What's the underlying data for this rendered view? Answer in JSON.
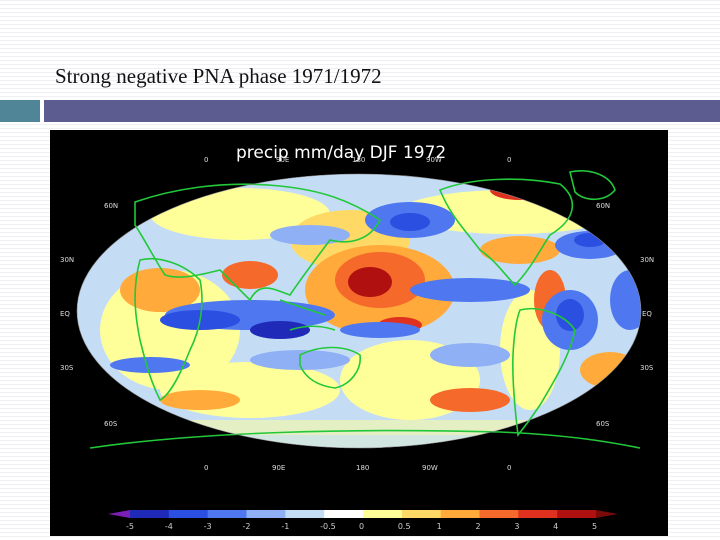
{
  "slide": {
    "title": "Strong negative PNA phase 1971/1972"
  },
  "map": {
    "title": "precip  mm/day DJF 1972",
    "projection": "global elliptical (Robinson-like)",
    "top_lon_labels": [
      "0",
      "90E",
      "180",
      "90W",
      "0"
    ],
    "bottom_lon_labels": [
      "0",
      "90E",
      "180",
      "90W",
      "0"
    ],
    "left_lat_labels": [
      "60N",
      "30N",
      "EQ",
      "30S",
      "60S"
    ],
    "right_lat_labels": [
      "60N",
      "30N",
      "EQ",
      "30S",
      "60S"
    ],
    "colors": {
      "background": "#000000",
      "coastline": "#22c83a"
    }
  },
  "colorbar": {
    "labels": [
      "-5",
      "-4",
      "-3",
      "-2",
      "-1",
      "-0.5",
      "0",
      "0.5",
      "1",
      "2",
      "3",
      "4",
      "5"
    ],
    "colors": [
      "#7a1fb5",
      "#1f2bb8",
      "#2b4fe0",
      "#4f78f0",
      "#8fb0f5",
      "#c4ddf5",
      "#ffffff",
      "#ffff9a",
      "#ffd966",
      "#ffaa3a",
      "#f56a2a",
      "#e0301f",
      "#b01010",
      "#7a0a0a"
    ]
  }
}
